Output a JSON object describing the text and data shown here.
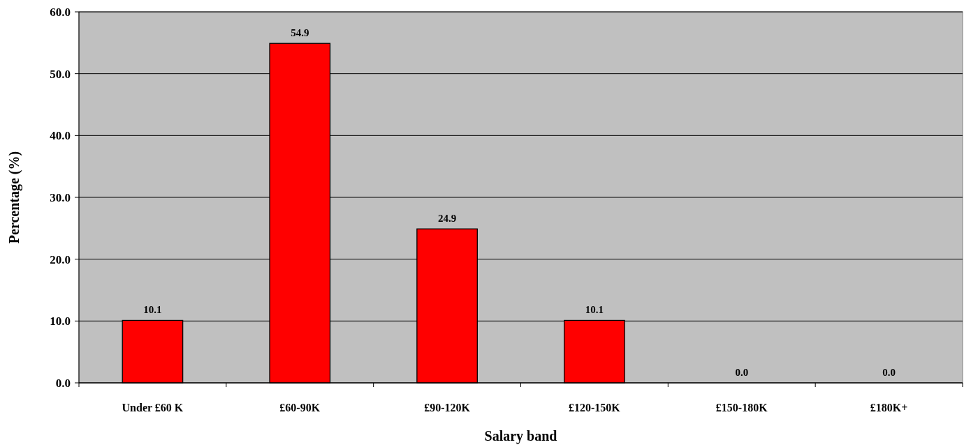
{
  "chart_data": {
    "type": "bar",
    "xlabel": "Salary band",
    "ylabel": "Percentage (%)",
    "categories": [
      "Under £60 K",
      "£60-90K",
      "£90-120K",
      "£120-150K",
      "£150-180K",
      "£180K+"
    ],
    "values": [
      10.1,
      54.9,
      24.9,
      10.1,
      0.0,
      0.0
    ],
    "value_labels": [
      "10.1",
      "54.9",
      "24.9",
      "10.1",
      "0.0",
      "0.0"
    ],
    "color": "#ff0000",
    "ylim": [
      0,
      60
    ],
    "yticks": [
      {
        "value": 0,
        "label": "0.0"
      },
      {
        "value": 10,
        "label": "10.0"
      },
      {
        "value": 20,
        "label": "20.0"
      },
      {
        "value": 30,
        "label": "30.0"
      },
      {
        "value": 40,
        "label": "40.0"
      },
      {
        "value": 50,
        "label": "50.0"
      },
      {
        "value": 60,
        "label": "60.0"
      }
    ],
    "grid": "y"
  }
}
